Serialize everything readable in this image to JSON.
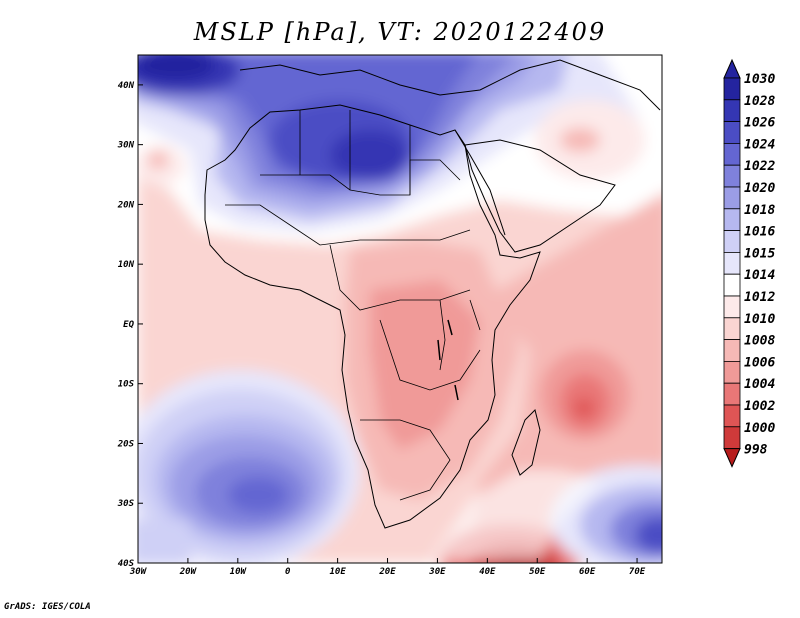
{
  "title": "MSLP [hPa], VT: 2020122409",
  "footer": "GrADS: IGES/COLA",
  "colors": {
    "c998": "#b71c1c",
    "c1000": "#cf3a3a",
    "c1002": "#df5555",
    "c1004": "#e97777",
    "c1006": "#f09a98",
    "c1008": "#f6b9b6",
    "c1010": "#fad5d2",
    "c1012": "#fdeaea",
    "c1014": "#ffffff",
    "c1015": "#e6e6fb",
    "c1016": "#cfd0f6",
    "c1018": "#b6b8f0",
    "c1020": "#9b9de6",
    "c1022": "#7f81dc",
    "c1024": "#6466d2",
    "c1026": "#4b4dc4",
    "c1028": "#3436b3",
    "c1030": "#24249f"
  },
  "chart_data": {
    "type": "heatmap",
    "title": "MSLP [hPa], VT: 2020122409",
    "variable": "MSLP",
    "units": "hPa",
    "valid_time": "2020122409",
    "x_ticks": [
      "30W",
      "20W",
      "10W",
      "0",
      "10E",
      "20E",
      "30E",
      "40E",
      "50E",
      "60E",
      "70E"
    ],
    "x_tick_values": [
      -30,
      -20,
      -10,
      0,
      10,
      20,
      30,
      40,
      50,
      60,
      70
    ],
    "y_ticks": [
      "40N",
      "30N",
      "20N",
      "10N",
      "EQ",
      "10S",
      "20S",
      "30S",
      "40S"
    ],
    "y_tick_values": [
      40,
      30,
      20,
      10,
      0,
      -10,
      -20,
      -30,
      -40
    ],
    "xlim": [
      -30,
      75
    ],
    "ylim": [
      -40,
      45
    ],
    "colorbar_levels": [
      "1030",
      "1028",
      "1026",
      "1024",
      "1022",
      "1020",
      "1018",
      "1016",
      "1015",
      "1014",
      "1012",
      "1010",
      "1008",
      "1006",
      "1004",
      "1002",
      "1000",
      "998"
    ],
    "pressure_centers": [
      {
        "type": "high",
        "lon": 20,
        "lat": 30,
        "value": 1028
      },
      {
        "type": "high",
        "lon": -20,
        "lat": 43,
        "value": 1030
      },
      {
        "type": "high",
        "lon": -20,
        "lat": -27,
        "value": 1026
      },
      {
        "type": "high",
        "lon": 72,
        "lat": -35,
        "value": 1030
      },
      {
        "type": "low",
        "lon": 59,
        "lat": -14,
        "value": 1004
      },
      {
        "type": "low",
        "lon": 45,
        "lat": -40,
        "value": 998
      },
      {
        "type": "low",
        "lon": -27,
        "lat": 28,
        "value": 1010
      }
    ]
  }
}
